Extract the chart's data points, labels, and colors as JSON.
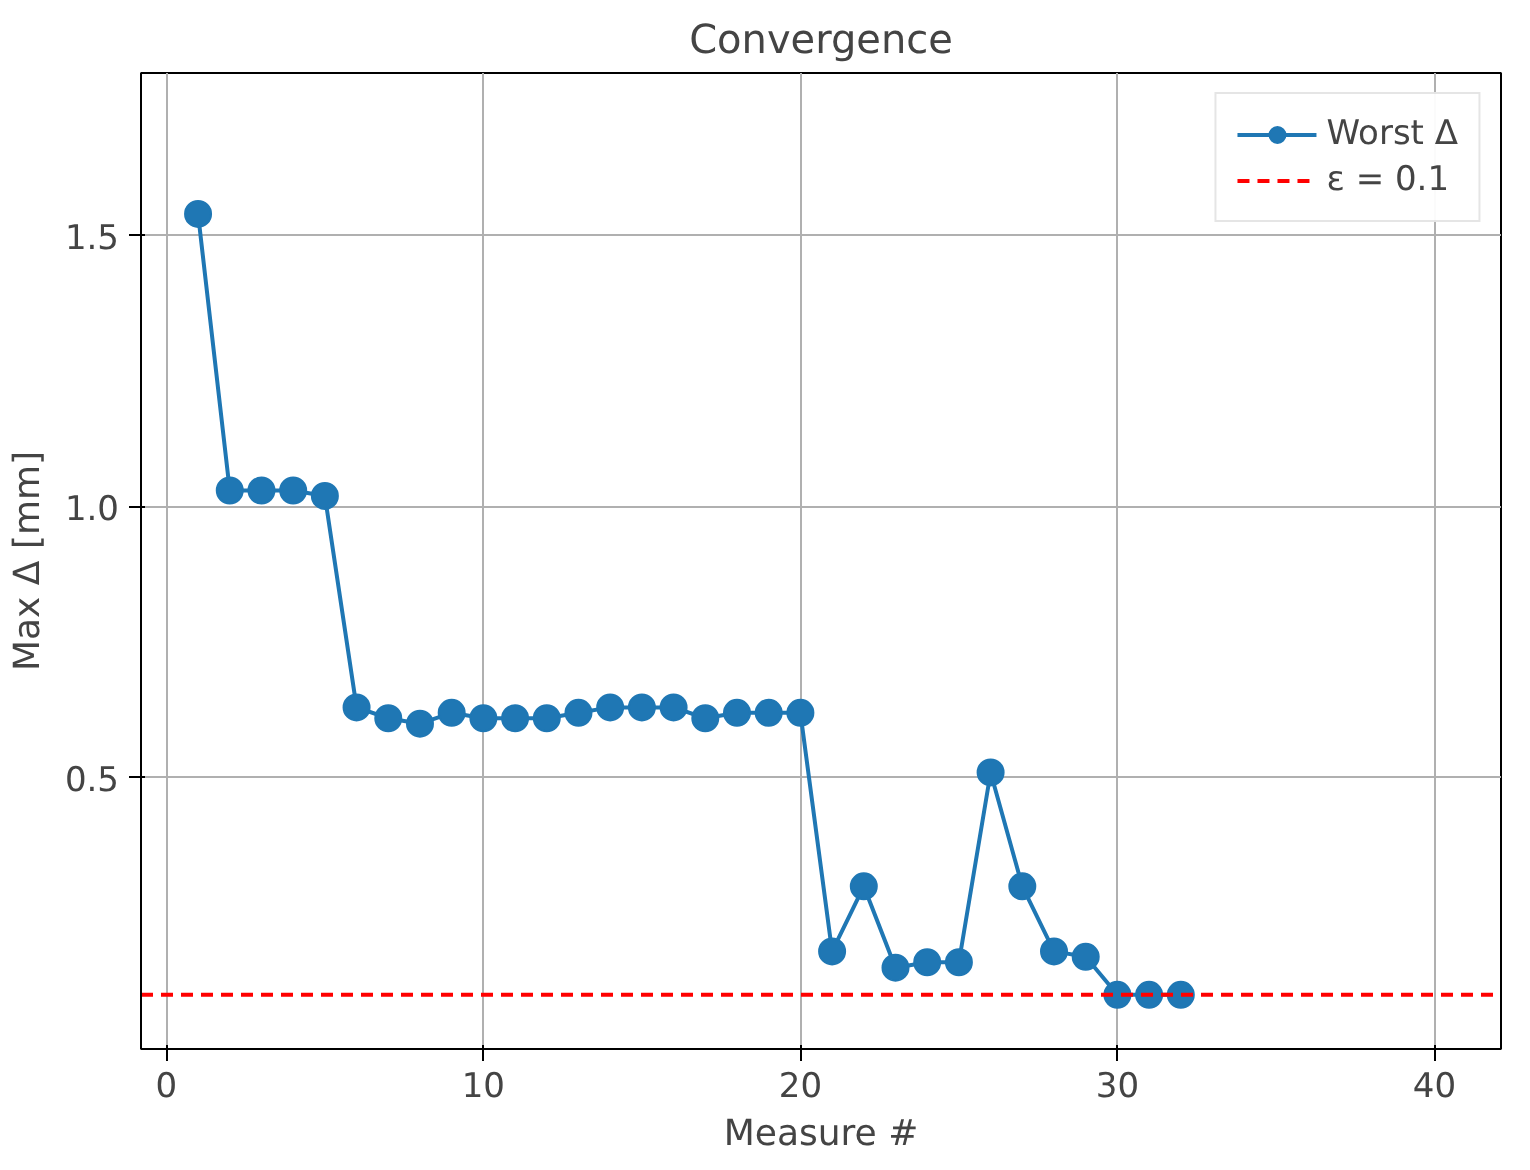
{
  "chart_data": {
    "type": "line",
    "title": "Convergence",
    "xlabel": "Measure #",
    "ylabel": "Max Δ [mm]",
    "x": [
      1,
      2,
      3,
      4,
      5,
      6,
      7,
      8,
      9,
      10,
      11,
      12,
      13,
      14,
      15,
      16,
      17,
      18,
      19,
      20,
      21,
      22,
      23,
      24,
      25,
      26,
      27,
      28,
      29,
      30,
      31,
      32
    ],
    "series": [
      {
        "name": "Worst Δ",
        "color": "#1f77b4",
        "values": [
          1.54,
          1.03,
          1.03,
          1.03,
          1.02,
          0.63,
          0.61,
          0.6,
          0.62,
          0.61,
          0.61,
          0.61,
          0.62,
          0.63,
          0.63,
          0.63,
          0.61,
          0.62,
          0.62,
          0.62,
          0.18,
          0.3,
          0.15,
          0.16,
          0.16,
          0.51,
          0.3,
          0.18,
          0.17,
          0.1,
          0.1,
          0.1
        ]
      }
    ],
    "ref_lines": [
      {
        "axis": "y",
        "value": 0.1,
        "label": "ε = 0.1",
        "color": "#ff0000",
        "line_style": "dashed"
      }
    ],
    "xlim": [
      -0.8,
      42.1
    ],
    "ylim": [
      0,
      1.8
    ],
    "xticks": [
      0,
      10,
      20,
      30,
      40
    ],
    "yticks": [
      0.5,
      {
        "value": 1,
        "label": "1.0"
      },
      1.5
    ],
    "grid": true,
    "legend": "top right",
    "marker": "circle",
    "line_style": "solid"
  }
}
